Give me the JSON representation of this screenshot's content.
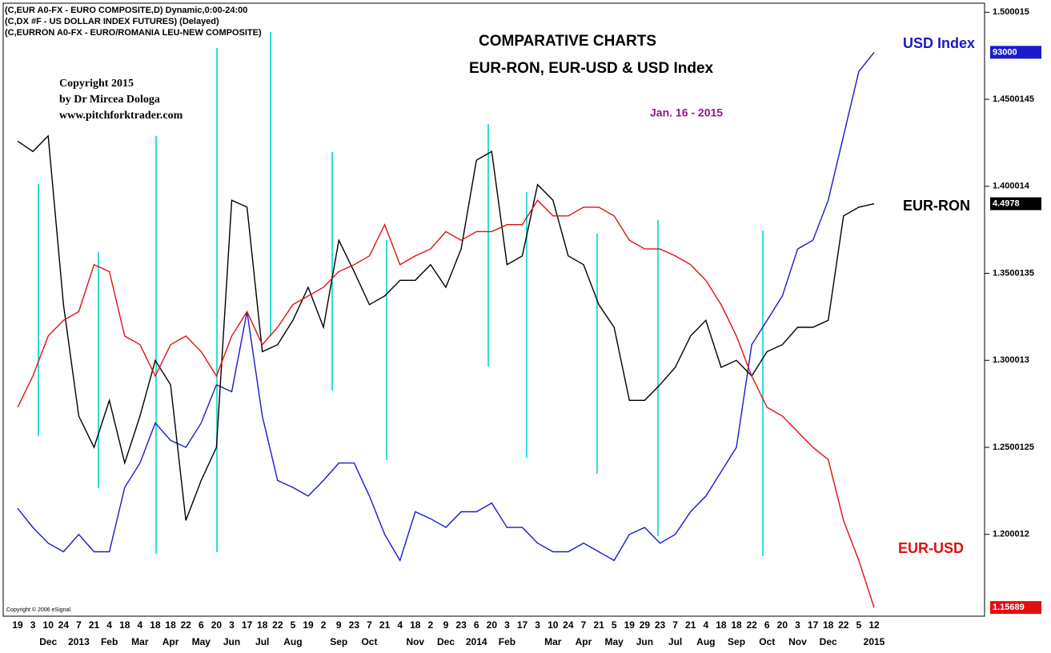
{
  "chart_data": {
    "type": "line",
    "title": "COMPARATIVE CHARTS",
    "subtitle": "EUR-RON, EUR-USD & USD Index",
    "date_note": "Jan. 16 - 2015",
    "header_lines": [
      "(C,EUR A0-FX - EURO COMPOSITE,D) Dynamic,0:00-24:00",
      "(C,DX #F - US DOLLAR INDEX FUTURES)  (Delayed)",
      "(C,EURRON A0-FX - EURO/ROMANIA LEU-NEW COMPOSITE)"
    ],
    "copyright_lines": [
      "Copyright 2015",
      "by Dr Mircea Dologa",
      "www.pitchforktrader.com"
    ],
    "source_note": "Copyright © 2006 eSignal.",
    "categories": [
      "19",
      "3",
      "10",
      "24",
      "7",
      "21",
      "4",
      "18",
      "4",
      "18",
      "18",
      "22",
      "6",
      "20",
      "3",
      "17",
      "18",
      "22",
      "5",
      "19",
      "2",
      "9",
      "23",
      "7",
      "21",
      "4",
      "18",
      "2",
      "9",
      "23",
      "6",
      "20",
      "3",
      "17",
      "3",
      "10",
      "24",
      "7",
      "21",
      "5",
      "19",
      "29",
      "23",
      "7",
      "21",
      "4",
      "18",
      "18",
      "22",
      "6",
      "20",
      "3",
      "17",
      "18",
      "22",
      "5",
      "12"
    ],
    "month_row": [
      null,
      null,
      "Dec",
      null,
      "2013",
      null,
      "Feb",
      null,
      "Mar",
      null,
      "Apr",
      null,
      "May",
      null,
      "Jun",
      null,
      "Jul",
      null,
      "Aug",
      null,
      null,
      "Sep",
      null,
      "Oct",
      null,
      null,
      "Nov",
      null,
      "Dec",
      null,
      "2014",
      null,
      "Feb",
      null,
      null,
      "Mar",
      null,
      "Apr",
      null,
      "May",
      null,
      "Jun",
      null,
      "Jul",
      null,
      "Aug",
      null,
      "Sep",
      null,
      "Oct",
      null,
      "Nov",
      null,
      "Dec",
      null,
      null,
      "2015"
    ],
    "series": [
      {
        "name": "USD Index",
        "color": "#1a1acc",
        "badge": "93000",
        "values": [
          1.215,
          1.204,
          1.195,
          1.19,
          1.2,
          1.19,
          1.19,
          1.227,
          1.241,
          1.264,
          1.254,
          1.25,
          1.264,
          1.286,
          1.282,
          1.328,
          1.268,
          1.231,
          1.227,
          1.222,
          1.231,
          1.241,
          1.241,
          1.222,
          1.2,
          1.185,
          1.213,
          1.209,
          1.204,
          1.213,
          1.213,
          1.218,
          1.204,
          1.204,
          1.195,
          1.19,
          1.19,
          1.195,
          1.19,
          1.185,
          1.2,
          1.204,
          1.195,
          1.2,
          1.213,
          1.222,
          1.236,
          1.25,
          1.309,
          1.323,
          1.337,
          1.364,
          1.369,
          1.392,
          1.429,
          1.466,
          1.477
        ]
      },
      {
        "name": "EUR-RON",
        "color": "#000000",
        "badge": "4.4978",
        "values": [
          1.426,
          1.42,
          1.429,
          1.332,
          1.268,
          1.25,
          1.277,
          1.241,
          1.268,
          1.3,
          1.286,
          1.208,
          1.231,
          1.25,
          1.392,
          1.388,
          1.305,
          1.309,
          1.323,
          1.342,
          1.319,
          1.369,
          1.351,
          1.332,
          1.337,
          1.346,
          1.346,
          1.355,
          1.342,
          1.364,
          1.415,
          1.42,
          1.355,
          1.36,
          1.401,
          1.392,
          1.36,
          1.355,
          1.332,
          1.319,
          1.277,
          1.277,
          1.286,
          1.296,
          1.314,
          1.323,
          1.296,
          1.3,
          1.291,
          1.305,
          1.309,
          1.319,
          1.319,
          1.323,
          1.383,
          1.388,
          1.39
        ]
      },
      {
        "name": "EUR-USD",
        "color": "#e01010",
        "badge": "1.15689",
        "values": [
          1.273,
          1.291,
          1.314,
          1.323,
          1.328,
          1.355,
          1.351,
          1.314,
          1.309,
          1.291,
          1.309,
          1.314,
          1.305,
          1.291,
          1.314,
          1.328,
          1.309,
          1.319,
          1.332,
          1.337,
          1.342,
          1.351,
          1.355,
          1.36,
          1.378,
          1.355,
          1.36,
          1.364,
          1.374,
          1.369,
          1.374,
          1.374,
          1.378,
          1.378,
          1.392,
          1.383,
          1.383,
          1.388,
          1.388,
          1.383,
          1.369,
          1.364,
          1.364,
          1.36,
          1.355,
          1.346,
          1.332,
          1.314,
          1.291,
          1.273,
          1.268,
          1.259,
          1.25,
          1.243,
          1.208,
          1.185,
          1.158
        ]
      }
    ],
    "ylim": [
      1.153,
      1.502
    ],
    "yticks": [
      1.500015,
      1.4500145,
      1.400014,
      1.3500135,
      1.300013,
      1.2500125,
      1.200012
    ]
  }
}
